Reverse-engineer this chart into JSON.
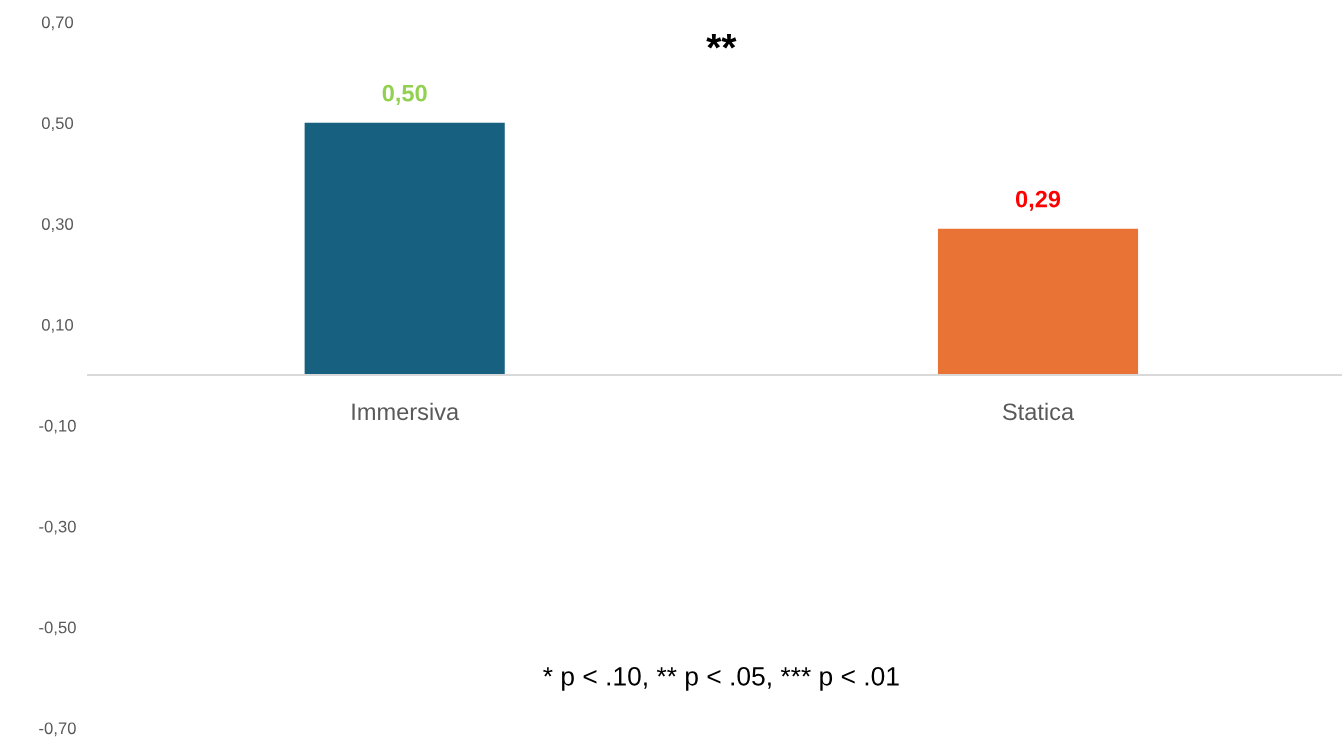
{
  "chart_data": {
    "type": "bar",
    "categories": [
      "Immersiva",
      "Statica"
    ],
    "values": [
      0.5,
      0.29
    ],
    "colors": [
      "#17607f",
      "#e87334"
    ],
    "value_labels": [
      "0,50",
      "0,29"
    ],
    "ylim": [
      -0.7,
      0.7
    ],
    "yticks": [
      {
        "value": 0.7,
        "label": "0,70"
      },
      {
        "value": 0.5,
        "label": "0,50"
      },
      {
        "value": 0.3,
        "label": "0,30"
      },
      {
        "value": 0.1,
        "label": "0,10"
      },
      {
        "value": -0.1,
        "label": "-0,10"
      },
      {
        "value": -0.3,
        "label": "-0,30"
      },
      {
        "value": -0.5,
        "label": "-0,50"
      },
      {
        "value": -0.7,
        "label": "-0,70"
      }
    ],
    "annotations": [
      "**",
      "* p < .10, ** p < .05, *** p < .01"
    ],
    "grid": false,
    "legend": false
  }
}
